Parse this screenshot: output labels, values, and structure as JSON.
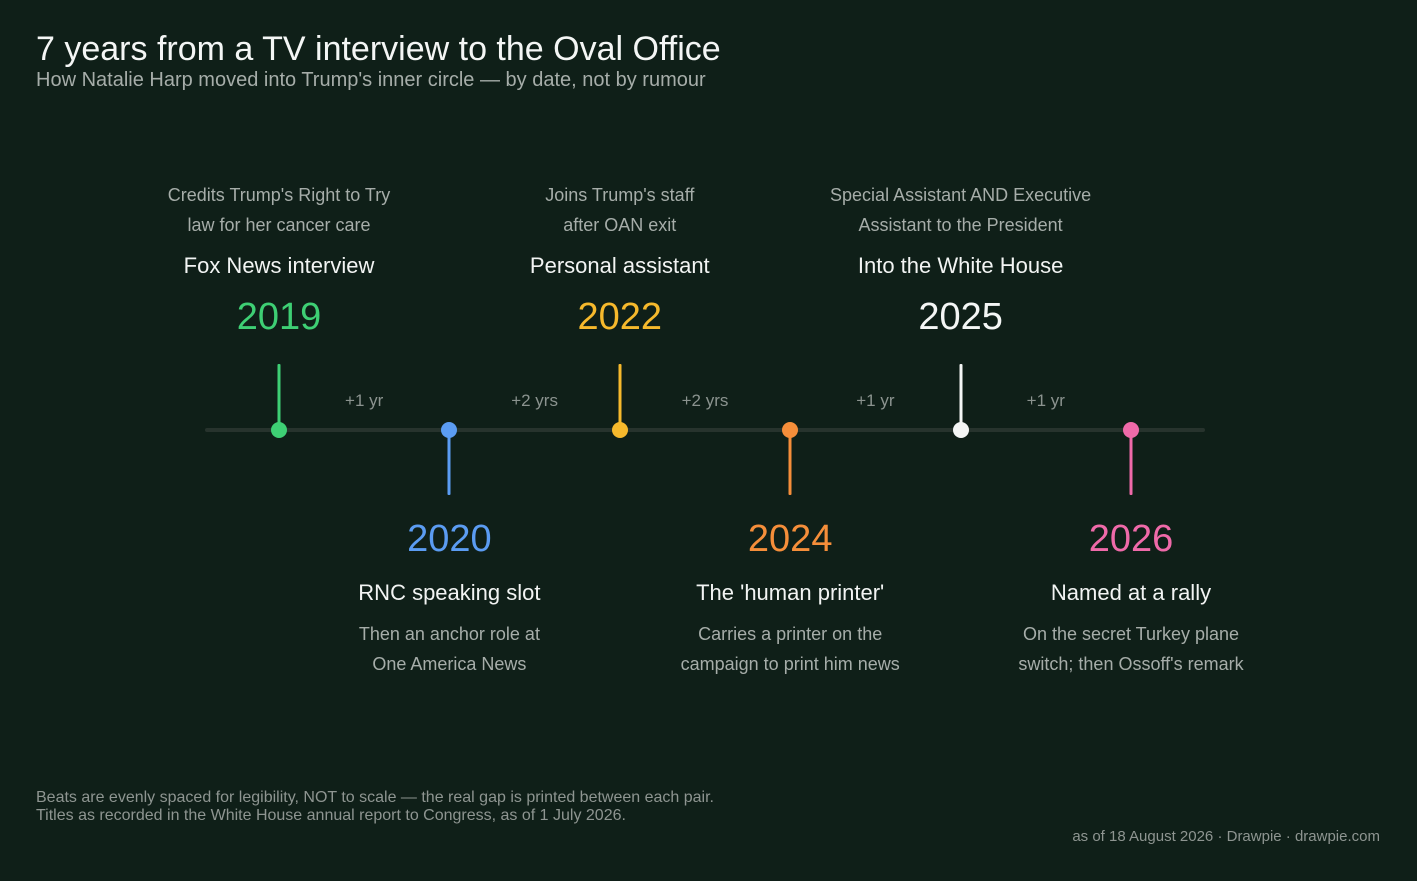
{
  "header": {
    "title": "7 years from a TV interview to the Oval Office",
    "subtitle": "How Natalie Harp moved into Trump's inner circle — by date, not by rumour"
  },
  "events": [
    {
      "year": "2019",
      "title": "Fox News interview",
      "desc_lines": [
        "Credits Trump's Right to Try",
        "law for her cancer care"
      ],
      "color": "#3ecf74",
      "side": "above"
    },
    {
      "year": "2020",
      "title": "RNC speaking slot",
      "desc_lines": [
        "Then an anchor role at",
        "One America News"
      ],
      "color": "#5b9cf2",
      "side": "below"
    },
    {
      "year": "2022",
      "title": "Personal assistant",
      "desc_lines": [
        "Joins Trump's staff",
        "after OAN exit"
      ],
      "color": "#f6b92c",
      "side": "above"
    },
    {
      "year": "2024",
      "title": "The 'human printer'",
      "desc_lines": [
        "Carries a printer on the",
        "campaign to print him news"
      ],
      "color": "#f58e3a",
      "side": "below"
    },
    {
      "year": "2025",
      "title": "Into the White House",
      "desc_lines": [
        "Special Assistant AND Executive",
        "Assistant to the President"
      ],
      "color": "#f4f6f5",
      "side": "above"
    },
    {
      "year": "2026",
      "title": "Named at a rally",
      "desc_lines": [
        "On the secret Turkey plane",
        "switch; then Ossoff's remark"
      ],
      "color": "#ef6aa9",
      "side": "below"
    }
  ],
  "gaps": [
    "+1 yr",
    "+2 yrs",
    "+2 yrs",
    "+1 yr",
    "+1 yr"
  ],
  "footer": {
    "note_1": "Beats are evenly spaced for legibility, NOT to scale — the real gap is printed between each pair.",
    "note_2": "Titles as recorded in the White House annual report to Congress, as of 1 July 2026.",
    "credit": "as of 18 August 2026  ·  Drawpie · drawpie.com"
  },
  "colors": {
    "background": "#0f1f18",
    "axis": "#27332d"
  }
}
